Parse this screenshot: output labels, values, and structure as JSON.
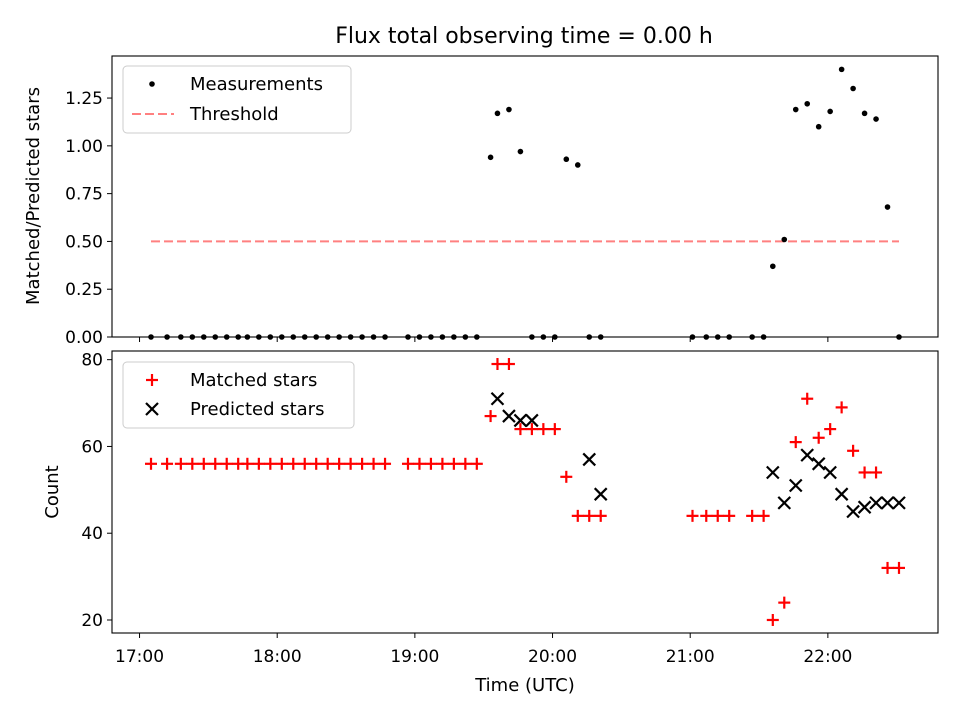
{
  "chart_data": [
    {
      "type": "scatter",
      "title": "Flux total observing time = 0.00 h",
      "xlabel": "",
      "ylabel": "Matched/Predicted stars",
      "xlim": [
        "16:48",
        "22:48"
      ],
      "ylim": [
        0,
        1.47
      ],
      "yticks": [
        0.0,
        0.25,
        0.5,
        0.75,
        1.0,
        1.25
      ],
      "ytick_labels": [
        "0.00",
        "0.25",
        "0.50",
        "0.75",
        "1.00",
        "1.25"
      ],
      "grid": false,
      "legend_position": "top-left",
      "legend": [
        "Measurements",
        "Threshold"
      ],
      "colors": {
        "measurements": "#000000",
        "threshold": "#ff8080"
      },
      "series": [
        {
          "name": "Measurements",
          "marker": "dot",
          "x": [
            "17:05",
            "17:12",
            "17:18",
            "17:23",
            "17:28",
            "17:33",
            "17:38",
            "17:43",
            "17:47",
            "17:52",
            "17:57",
            "18:02",
            "18:07",
            "18:12",
            "18:17",
            "18:22",
            "18:27",
            "18:32",
            "18:37",
            "18:42",
            "18:47",
            "18:57",
            "19:02",
            "19:07",
            "19:12",
            "19:17",
            "19:22",
            "19:27",
            "19:33",
            "19:36",
            "19:41",
            "19:46",
            "19:51",
            "19:56",
            "20:01",
            "20:06",
            "20:11",
            "20:16",
            "20:21",
            "21:01",
            "21:07",
            "21:12",
            "21:17",
            "21:27",
            "21:32",
            "21:36",
            "21:41",
            "21:46",
            "21:51",
            "21:56",
            "22:01",
            "22:06",
            "22:11",
            "22:16",
            "22:21",
            "22:26",
            "22:31"
          ],
          "y": [
            0,
            0,
            0,
            0,
            0,
            0,
            0,
            0,
            0,
            0,
            0,
            0,
            0,
            0,
            0,
            0,
            0,
            0,
            0,
            0,
            0,
            0,
            0,
            0,
            0,
            0,
            0,
            0,
            0.94,
            1.17,
            1.19,
            0.97,
            0,
            0,
            0,
            0.93,
            0.9,
            0,
            0,
            0,
            0,
            0,
            0,
            0,
            0,
            0.37,
            0.51,
            1.19,
            1.22,
            1.1,
            1.18,
            1.4,
            1.3,
            1.17,
            1.14,
            0.68,
            0
          ]
        },
        {
          "name": "Threshold",
          "style": "dashed",
          "x": [
            "17:05",
            "22:31"
          ],
          "y": [
            0.5,
            0.5
          ]
        }
      ]
    },
    {
      "type": "scatter",
      "title": "",
      "xlabel": "Time (UTC)",
      "ylabel": "Count",
      "xlim": [
        "16:48",
        "22:48"
      ],
      "ylim": [
        17,
        82
      ],
      "yticks": [
        20,
        40,
        60,
        80
      ],
      "xticks": [
        "17:00",
        "18:00",
        "19:00",
        "20:00",
        "21:00",
        "22:00"
      ],
      "grid": false,
      "legend_position": "top-left",
      "legend": [
        "Matched stars",
        "Predicted stars"
      ],
      "colors": {
        "matched": "#ff0000",
        "predicted": "#000000"
      },
      "series": [
        {
          "name": "Matched stars",
          "marker": "plus",
          "x": [
            "17:05",
            "17:12",
            "17:18",
            "17:23",
            "17:28",
            "17:33",
            "17:38",
            "17:43",
            "17:47",
            "17:52",
            "17:57",
            "18:02",
            "18:07",
            "18:12",
            "18:17",
            "18:22",
            "18:27",
            "18:32",
            "18:37",
            "18:42",
            "18:47",
            "18:57",
            "19:02",
            "19:07",
            "19:12",
            "19:17",
            "19:22",
            "19:27",
            "19:33",
            "19:36",
            "19:41",
            "19:46",
            "19:51",
            "19:56",
            "20:01",
            "20:06",
            "20:11",
            "20:16",
            "20:21",
            "21:01",
            "21:07",
            "21:12",
            "21:17",
            "21:27",
            "21:32",
            "21:36",
            "21:41",
            "21:46",
            "21:51",
            "21:56",
            "22:01",
            "22:06",
            "22:11",
            "22:16",
            "22:21",
            "22:26",
            "22:31"
          ],
          "y": [
            56,
            56,
            56,
            56,
            56,
            56,
            56,
            56,
            56,
            56,
            56,
            56,
            56,
            56,
            56,
            56,
            56,
            56,
            56,
            56,
            56,
            56,
            56,
            56,
            56,
            56,
            56,
            56,
            67,
            79,
            79,
            64,
            64,
            64,
            64,
            53,
            44,
            44,
            44,
            44,
            44,
            44,
            44,
            44,
            44,
            20,
            24,
            61,
            71,
            62,
            64,
            69,
            59,
            54,
            54,
            32,
            32
          ]
        },
        {
          "name": "Predicted stars",
          "marker": "x",
          "x": [
            "19:36",
            "19:41",
            "19:46",
            "19:51",
            "20:16",
            "20:21",
            "21:36",
            "21:41",
            "21:46",
            "21:51",
            "21:56",
            "22:01",
            "22:06",
            "22:11",
            "22:16",
            "22:21",
            "22:26",
            "22:31"
          ],
          "y": [
            71,
            67,
            66,
            66,
            57,
            49,
            54,
            47,
            51,
            58,
            56,
            54,
            49,
            45,
            46,
            47,
            47,
            47
          ]
        }
      ]
    }
  ]
}
